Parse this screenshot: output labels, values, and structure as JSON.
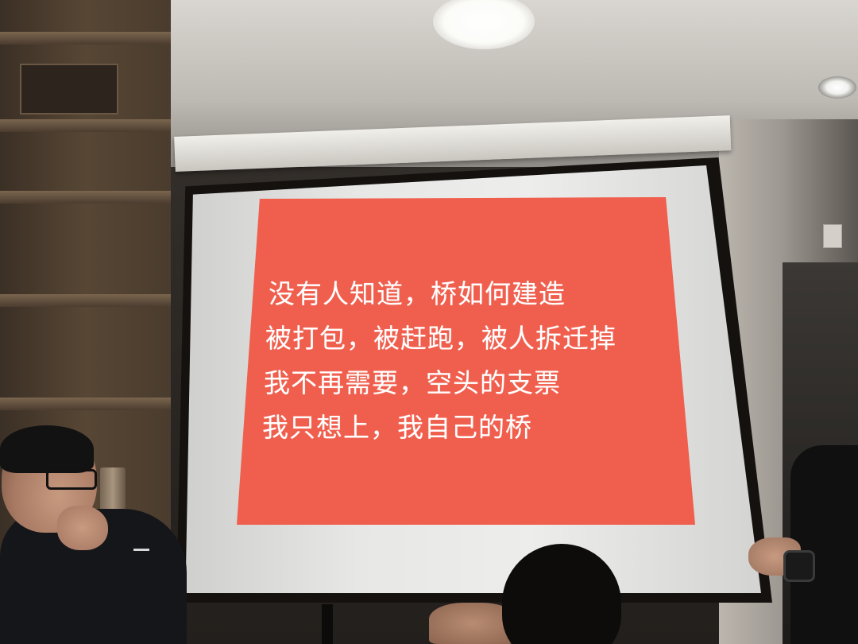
{
  "slide": {
    "background_color": "#f05e4d",
    "text_color": "#ffffff",
    "lines": [
      "没有人知道，桥如何建造",
      "被打包，被赶跑，被人拆迁掉",
      "我不再需要，空头的支票",
      "我只想上，我自己的桥"
    ]
  }
}
